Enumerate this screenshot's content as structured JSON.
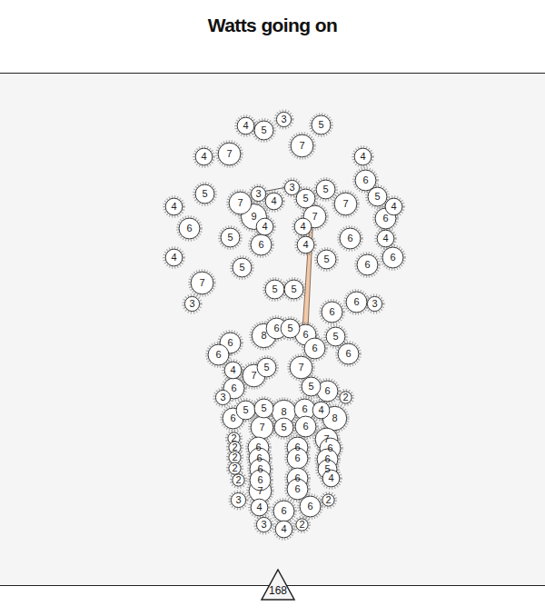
{
  "chart_data": {
    "type": "scatter",
    "title": "Watts going on",
    "x": [
      270,
      290,
      312,
      353,
      332,
      252,
      224,
      399,
      402,
      415,
      433,
      424,
      225,
      191,
      264,
      284,
      301,
      321,
      336,
      358,
      380,
      346,
      279,
      291,
      333,
      208,
      253,
      287,
      336,
      385,
      424,
      432,
      191,
      266,
      359,
      404,
      222,
      211,
      302,
      323,
      392,
      412,
      365,
      290,
      304,
      319,
      336,
      346,
      369,
      383,
      253,
      240,
      256,
      279,
      293,
      331,
      342,
      360,
      380,
      257,
      245,
      270,
      290,
      312,
      335,
      353,
      368,
      256,
      288,
      312,
      336,
      257,
      258,
      258,
      258,
      262,
      284,
      285,
      286,
      286,
      286,
      327,
      327,
      327,
      327,
      359,
      363,
      360,
      360,
      364,
      262,
      285,
      312,
      341,
      361,
      290,
      312,
      332
    ],
    "y": [
      138,
      143,
      131,
      137,
      160,
      169,
      172,
      172,
      198,
      216,
      227,
      240,
      213,
      227,
      223,
      213,
      221,
      206,
      218,
      208,
      224,
      238,
      238,
      249,
      249,
      251,
      261,
      269,
      269,
      262,
      262,
      283,
      283,
      294,
      285,
      291,
      311,
      334,
      318,
      318,
      332,
      334,
      343,
      369,
      361,
      361,
      368,
      383,
      370,
      389,
      377,
      390,
      407,
      413,
      404,
      404,
      425,
      430,
      437,
      427,
      437,
      451,
      449,
      453,
      450,
      451,
      460,
      460,
      470,
      470,
      469,
      482,
      492,
      503,
      515,
      528,
      492,
      504,
      516,
      528,
      540,
      492,
      504,
      526,
      538,
      483,
      493,
      505,
      516,
      526,
      550,
      558,
      562,
      557,
      550,
      577,
      582,
      577
    ],
    "values": [
      4,
      5,
      3,
      5,
      7,
      7,
      4,
      4,
      6,
      5,
      4,
      6,
      5,
      4,
      7,
      3,
      4,
      3,
      5,
      5,
      7,
      7,
      9,
      4,
      4,
      6,
      5,
      6,
      4,
      6,
      4,
      6,
      4,
      5,
      5,
      6,
      7,
      3,
      5,
      5,
      6,
      3,
      6,
      8,
      6,
      5,
      6,
      6,
      5,
      6,
      6,
      6,
      4,
      7,
      5,
      7,
      5,
      6,
      2,
      6,
      3,
      5,
      5,
      8,
      6,
      4,
      8,
      6,
      7,
      5,
      6,
      2,
      2,
      2,
      2,
      2,
      6,
      6,
      6,
      6,
      7,
      6,
      6,
      6,
      6,
      7,
      6,
      6,
      5,
      4,
      3,
      4,
      6,
      6,
      2,
      3,
      4,
      2
    ],
    "xlim": [
      0,
      600
    ],
    "ylim": [
      678,
      0
    ],
    "xticks": [],
    "yticks": [],
    "tick_labels": false,
    "data_labels": true,
    "color": "#ffffff"
  },
  "page_number": 168
}
